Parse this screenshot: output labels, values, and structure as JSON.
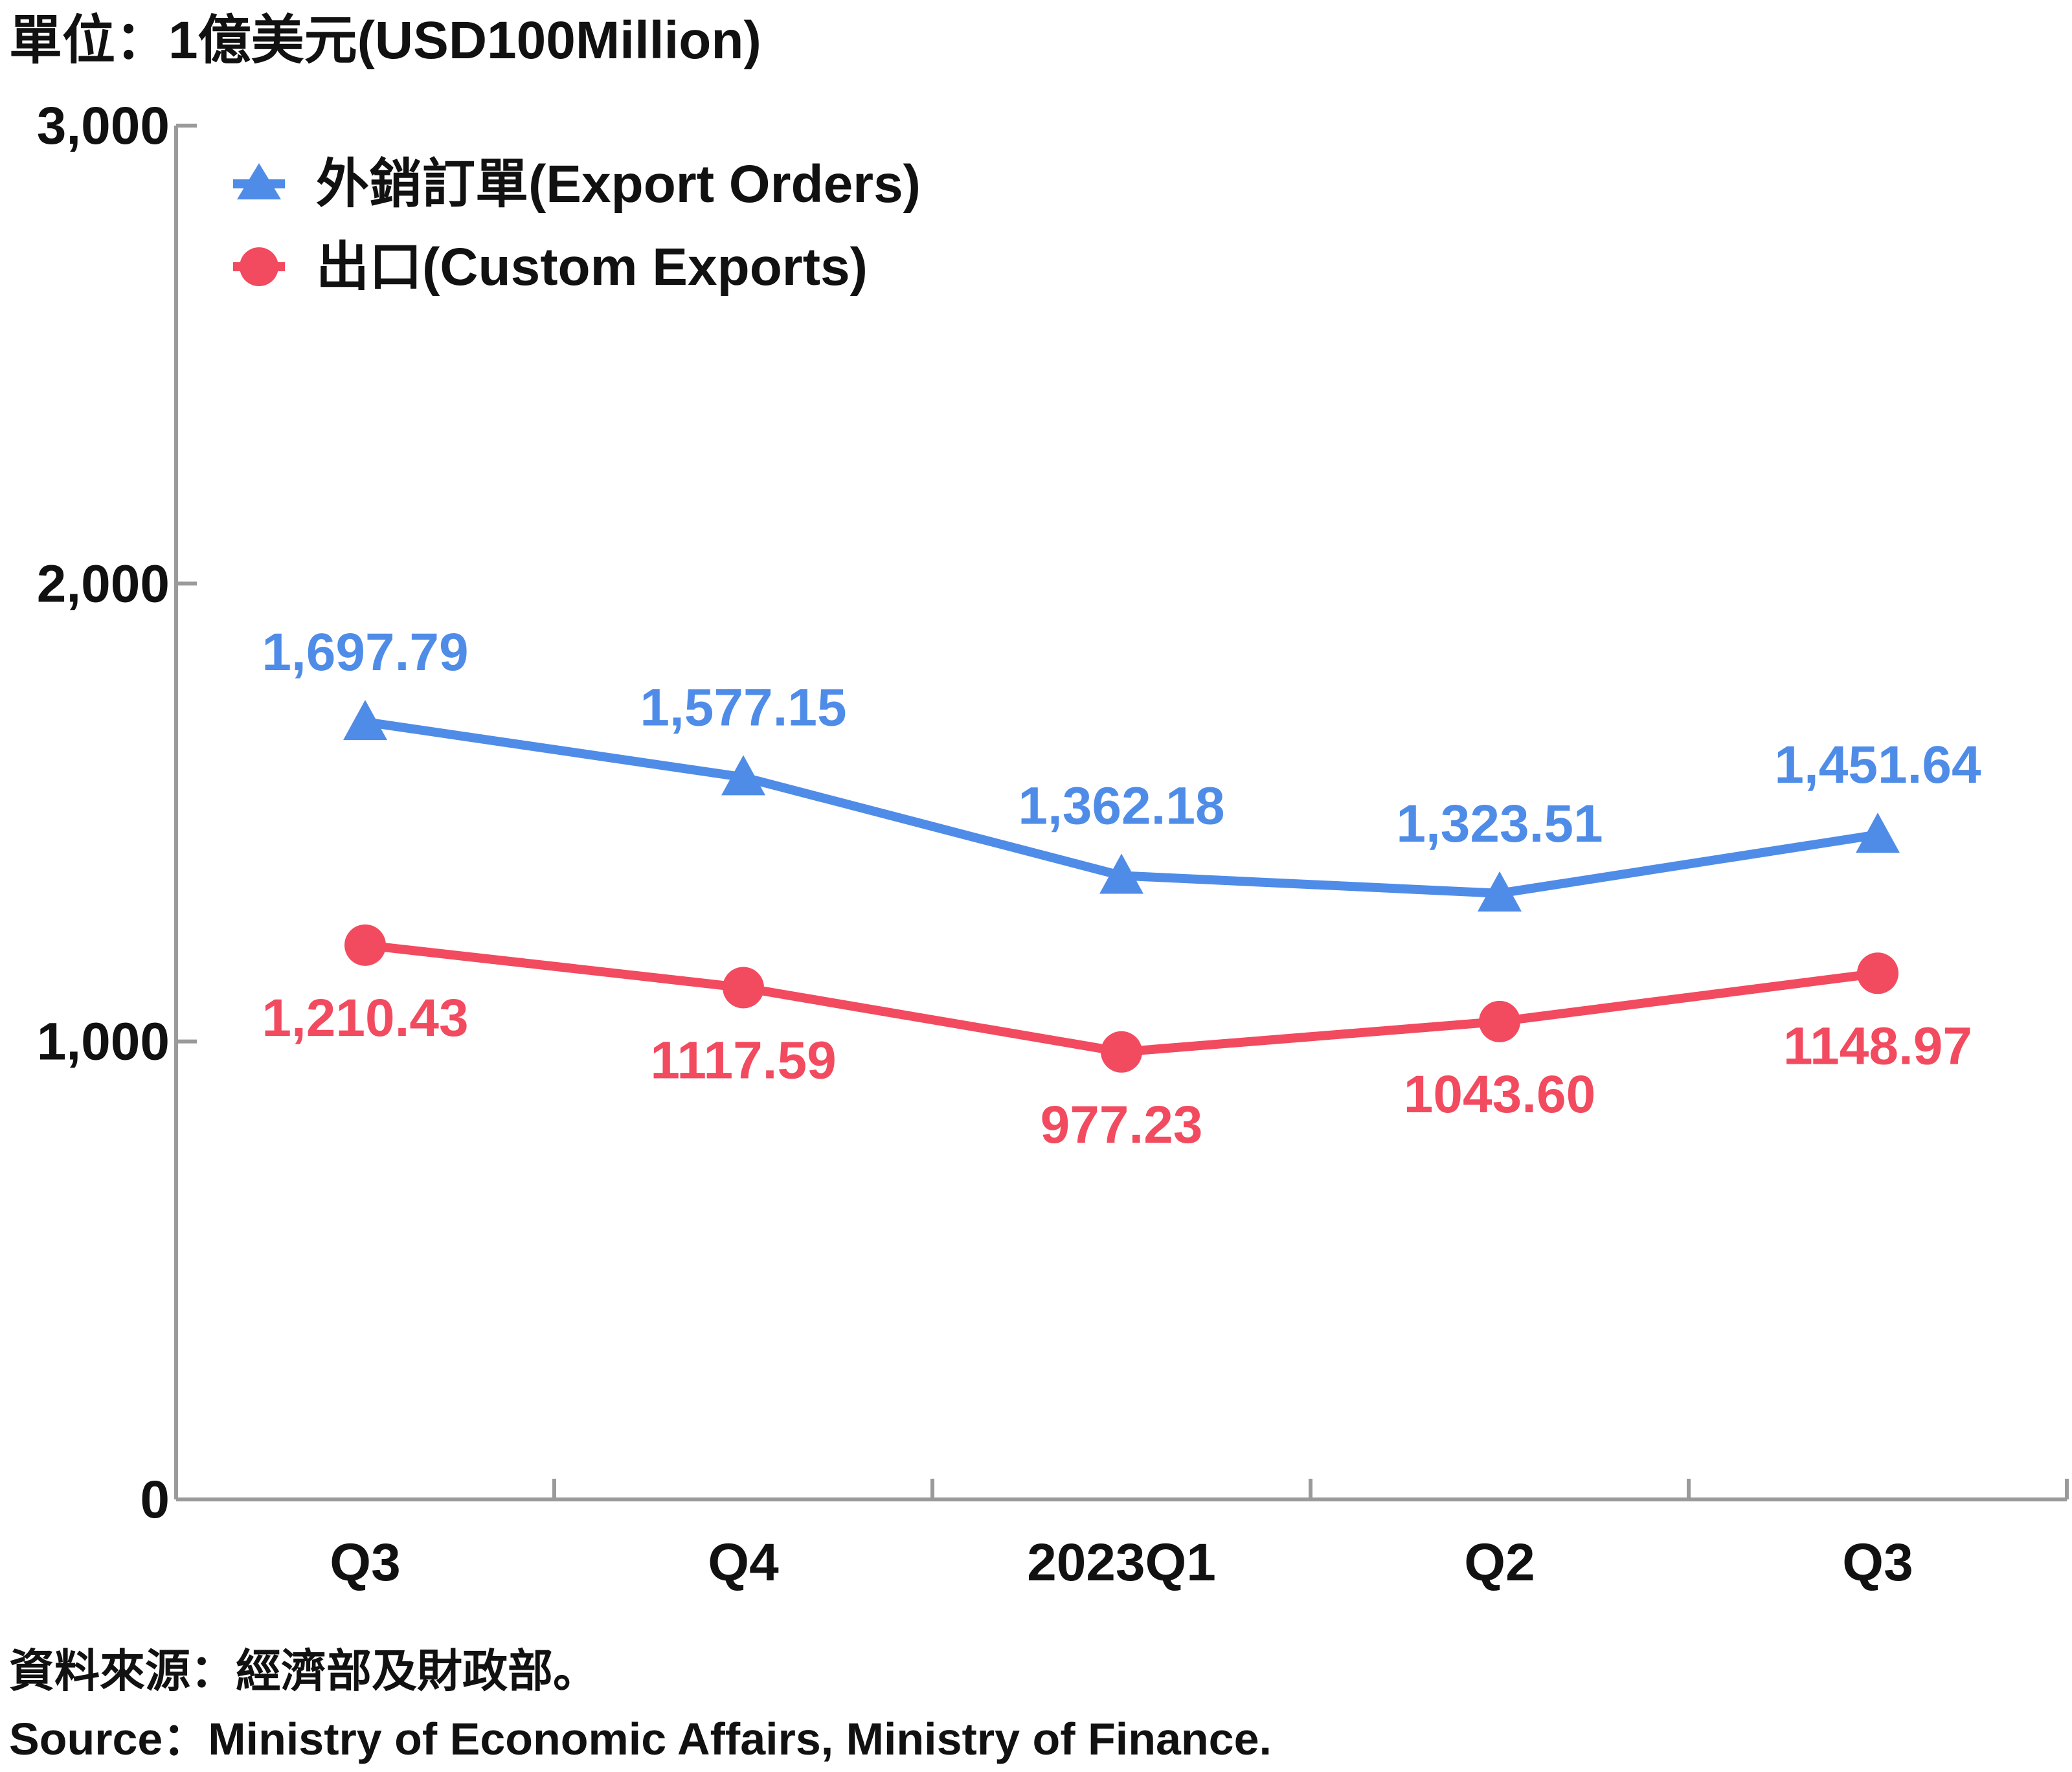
{
  "unit_label": "單位：1億美元(USD100Million)",
  "source_zh": "資料來源：經濟部及財政部。",
  "source_en": "Source：Ministry of Economic Affairs, Ministry of Finance.",
  "colors": {
    "export_orders": "#4f8ce8",
    "custom_exports": "#f24a5f",
    "axis": "#9a9a9a"
  },
  "chart_data": {
    "type": "line",
    "categories": [
      "Q3",
      "Q4",
      "2023Q1",
      "Q2",
      "Q3"
    ],
    "ylim": [
      0,
      3000
    ],
    "yticks": [
      0,
      1000,
      2000,
      3000
    ],
    "ytick_labels": [
      "0",
      "1,000",
      "2,000",
      "3,000"
    ],
    "grid": false,
    "legend_position": "top-left",
    "series": [
      {
        "name": "外銷訂單(Export Orders)",
        "marker": "triangle",
        "color": "#4f8ce8",
        "values": [
          1697.79,
          1577.15,
          1362.18,
          1323.51,
          1451.64
        ],
        "labels": [
          "1,697.79",
          "1,577.15",
          "1,362.18",
          "1,323.51",
          "1,451.64"
        ],
        "label_position": "above"
      },
      {
        "name": "出口(Custom Exports)",
        "marker": "circle",
        "color": "#f24a5f",
        "values": [
          1210.43,
          1117.59,
          977.23,
          1043.6,
          1148.97
        ],
        "labels": [
          "1,210.43",
          "1117.59",
          "977.23",
          "1043.60",
          "1148.97"
        ],
        "label_position": "below"
      }
    ]
  }
}
